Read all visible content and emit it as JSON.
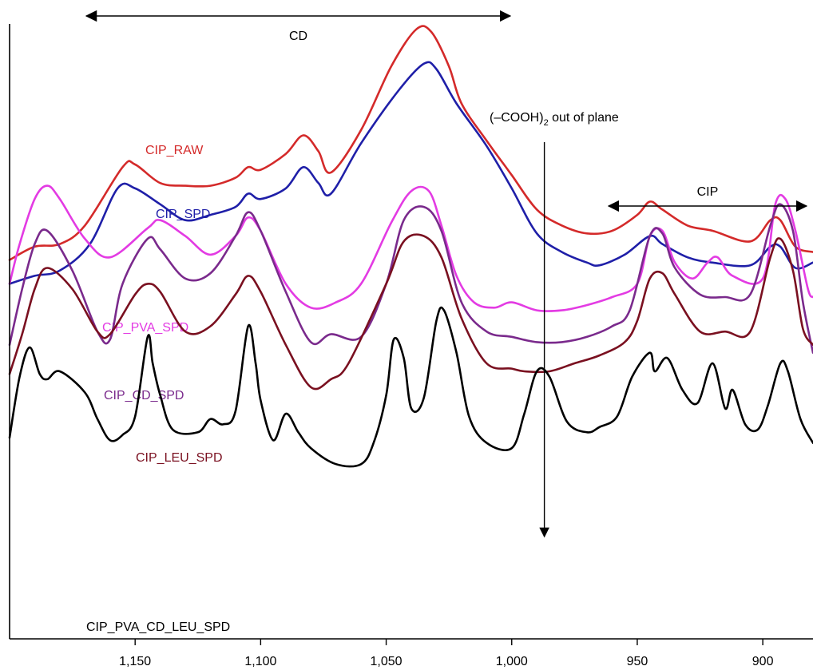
{
  "chart_data": {
    "type": "line",
    "title": "",
    "xlabel": "",
    "ylabel": "",
    "x_reversed": true,
    "xlim": [
      1200,
      880
    ],
    "x_ticks": [
      1150,
      1100,
      1050,
      1000,
      950,
      900
    ],
    "x_tick_labels": [
      "1,150",
      "1,100",
      "1,050",
      "1,000",
      "950",
      "900"
    ],
    "y_axis": "arbitrary offset intensity, no tick labels",
    "series": [
      {
        "name": "CIP_RAW",
        "color": "#d42a2a",
        "points": [
          [
            1200,
            0.39
          ],
          [
            1190,
            0.44
          ],
          [
            1180,
            0.45
          ],
          [
            1170,
            0.52
          ],
          [
            1155,
            0.74
          ],
          [
            1150,
            0.75
          ],
          [
            1140,
            0.68
          ],
          [
            1130,
            0.67
          ],
          [
            1120,
            0.67
          ],
          [
            1110,
            0.7
          ],
          [
            1105,
            0.74
          ],
          [
            1100,
            0.73
          ],
          [
            1090,
            0.79
          ],
          [
            1083,
            0.86
          ],
          [
            1077,
            0.8
          ],
          [
            1072,
            0.72
          ],
          [
            1060,
            0.88
          ],
          [
            1048,
            1.12
          ],
          [
            1038,
            1.26
          ],
          [
            1032,
            1.25
          ],
          [
            1025,
            1.12
          ],
          [
            1020,
            0.98
          ],
          [
            1010,
            0.84
          ],
          [
            1000,
            0.71
          ],
          [
            990,
            0.58
          ],
          [
            980,
            0.52
          ],
          [
            970,
            0.49
          ],
          [
            960,
            0.5
          ],
          [
            950,
            0.56
          ],
          [
            945,
            0.61
          ],
          [
            940,
            0.58
          ],
          [
            930,
            0.52
          ],
          [
            920,
            0.5
          ],
          [
            905,
            0.46
          ],
          [
            897,
            0.54
          ],
          [
            893,
            0.54
          ],
          [
            887,
            0.44
          ],
          [
            880,
            0.42
          ]
        ]
      },
      {
        "name": "CIP_SPD",
        "color": "#1f1fa8",
        "points": [
          [
            1200,
            0.3
          ],
          [
            1190,
            0.33
          ],
          [
            1180,
            0.35
          ],
          [
            1168,
            0.45
          ],
          [
            1157,
            0.66
          ],
          [
            1150,
            0.66
          ],
          [
            1140,
            0.6
          ],
          [
            1130,
            0.54
          ],
          [
            1120,
            0.56
          ],
          [
            1110,
            0.59
          ],
          [
            1105,
            0.64
          ],
          [
            1100,
            0.62
          ],
          [
            1090,
            0.66
          ],
          [
            1083,
            0.74
          ],
          [
            1077,
            0.68
          ],
          [
            1072,
            0.64
          ],
          [
            1060,
            0.83
          ],
          [
            1045,
            1.03
          ],
          [
            1035,
            1.13
          ],
          [
            1030,
            1.11
          ],
          [
            1022,
            0.98
          ],
          [
            1010,
            0.82
          ],
          [
            1000,
            0.66
          ],
          [
            990,
            0.49
          ],
          [
            980,
            0.42
          ],
          [
            970,
            0.38
          ],
          [
            965,
            0.37
          ],
          [
            955,
            0.41
          ],
          [
            945,
            0.48
          ],
          [
            940,
            0.45
          ],
          [
            930,
            0.4
          ],
          [
            920,
            0.38
          ],
          [
            905,
            0.37
          ],
          [
            897,
            0.44
          ],
          [
            893,
            0.44
          ],
          [
            887,
            0.36
          ],
          [
            880,
            0.38
          ]
        ]
      },
      {
        "name": "CIP_PVA_SPD",
        "color": "#e33be3",
        "points": [
          [
            1200,
            0.3
          ],
          [
            1196,
            0.45
          ],
          [
            1190,
            0.62
          ],
          [
            1185,
            0.67
          ],
          [
            1180,
            0.62
          ],
          [
            1170,
            0.47
          ],
          [
            1160,
            0.4
          ],
          [
            1145,
            0.51
          ],
          [
            1140,
            0.54
          ],
          [
            1130,
            0.48
          ],
          [
            1120,
            0.41
          ],
          [
            1110,
            0.48
          ],
          [
            1105,
            0.55
          ],
          [
            1100,
            0.5
          ],
          [
            1090,
            0.3
          ],
          [
            1080,
            0.21
          ],
          [
            1070,
            0.23
          ],
          [
            1060,
            0.3
          ],
          [
            1048,
            0.53
          ],
          [
            1040,
            0.65
          ],
          [
            1033,
            0.65
          ],
          [
            1028,
            0.52
          ],
          [
            1022,
            0.33
          ],
          [
            1015,
            0.23
          ],
          [
            1007,
            0.21
          ],
          [
            1000,
            0.23
          ],
          [
            990,
            0.2
          ],
          [
            980,
            0.2
          ],
          [
            970,
            0.22
          ],
          [
            960,
            0.25
          ],
          [
            950,
            0.3
          ],
          [
            945,
            0.48
          ],
          [
            940,
            0.5
          ],
          [
            935,
            0.38
          ],
          [
            928,
            0.32
          ],
          [
            922,
            0.38
          ],
          [
            918,
            0.4
          ],
          [
            912,
            0.33
          ],
          [
            900,
            0.32
          ],
          [
            895,
            0.6
          ],
          [
            891,
            0.62
          ],
          [
            887,
            0.5
          ],
          [
            882,
            0.28
          ],
          [
            880,
            0.25
          ]
        ]
      },
      {
        "name": "CIP_CD_SPD",
        "color": "#7a2a8c",
        "points": [
          [
            1200,
            0.07
          ],
          [
            1195,
            0.28
          ],
          [
            1190,
            0.45
          ],
          [
            1185,
            0.5
          ],
          [
            1175,
            0.35
          ],
          [
            1165,
            0.12
          ],
          [
            1160,
            0.09
          ],
          [
            1155,
            0.3
          ],
          [
            1145,
            0.47
          ],
          [
            1140,
            0.43
          ],
          [
            1130,
            0.32
          ],
          [
            1120,
            0.34
          ],
          [
            1110,
            0.48
          ],
          [
            1105,
            0.57
          ],
          [
            1100,
            0.5
          ],
          [
            1090,
            0.27
          ],
          [
            1080,
            0.08
          ],
          [
            1072,
            0.11
          ],
          [
            1060,
            0.1
          ],
          [
            1050,
            0.3
          ],
          [
            1043,
            0.54
          ],
          [
            1035,
            0.59
          ],
          [
            1028,
            0.5
          ],
          [
            1020,
            0.23
          ],
          [
            1010,
            0.12
          ],
          [
            1000,
            0.1
          ],
          [
            990,
            0.08
          ],
          [
            980,
            0.08
          ],
          [
            970,
            0.1
          ],
          [
            960,
            0.14
          ],
          [
            953,
            0.2
          ],
          [
            945,
            0.48
          ],
          [
            940,
            0.49
          ],
          [
            935,
            0.36
          ],
          [
            925,
            0.26
          ],
          [
            915,
            0.25
          ],
          [
            905,
            0.26
          ],
          [
            897,
            0.52
          ],
          [
            893,
            0.6
          ],
          [
            888,
            0.5
          ],
          [
            884,
            0.23
          ],
          [
            880,
            0.04
          ]
        ]
      },
      {
        "name": "CIP_LEU_SPD",
        "color": "#7a1020",
        "points": [
          [
            1200,
            -0.04
          ],
          [
            1195,
            0.11
          ],
          [
            1190,
            0.28
          ],
          [
            1185,
            0.36
          ],
          [
            1175,
            0.28
          ],
          [
            1165,
            0.12
          ],
          [
            1160,
            0.11
          ],
          [
            1150,
            0.26
          ],
          [
            1145,
            0.3
          ],
          [
            1140,
            0.27
          ],
          [
            1130,
            0.12
          ],
          [
            1120,
            0.14
          ],
          [
            1110,
            0.26
          ],
          [
            1105,
            0.33
          ],
          [
            1100,
            0.27
          ],
          [
            1090,
            0.07
          ],
          [
            1080,
            -0.09
          ],
          [
            1072,
            -0.06
          ],
          [
            1065,
            0.0
          ],
          [
            1050,
            0.3
          ],
          [
            1043,
            0.46
          ],
          [
            1035,
            0.48
          ],
          [
            1028,
            0.4
          ],
          [
            1020,
            0.17
          ],
          [
            1010,
            0.0
          ],
          [
            1000,
            -0.02
          ],
          [
            995,
            -0.03
          ],
          [
            985,
            -0.03
          ],
          [
            975,
            0.0
          ],
          [
            965,
            0.03
          ],
          [
            955,
            0.08
          ],
          [
            950,
            0.16
          ],
          [
            945,
            0.32
          ],
          [
            940,
            0.34
          ],
          [
            935,
            0.26
          ],
          [
            925,
            0.12
          ],
          [
            915,
            0.12
          ],
          [
            905,
            0.12
          ],
          [
            897,
            0.4
          ],
          [
            893,
            0.47
          ],
          [
            888,
            0.35
          ],
          [
            884,
            0.13
          ],
          [
            880,
            0.07
          ]
        ]
      },
      {
        "name": "CIP_PVA_CD_LEU_SPD",
        "color": "#000000",
        "points": [
          [
            1200,
            -0.28
          ],
          [
            1196,
            -0.05
          ],
          [
            1192,
            0.06
          ],
          [
            1188,
            -0.04
          ],
          [
            1185,
            -0.06
          ],
          [
            1180,
            -0.03
          ],
          [
            1170,
            -0.11
          ],
          [
            1165,
            -0.21
          ],
          [
            1160,
            -0.29
          ],
          [
            1155,
            -0.27
          ],
          [
            1150,
            -0.2
          ],
          [
            1145,
            0.1
          ],
          [
            1143,
            0.0
          ],
          [
            1140,
            -0.12
          ],
          [
            1135,
            -0.25
          ],
          [
            1125,
            -0.26
          ],
          [
            1120,
            -0.21
          ],
          [
            1115,
            -0.23
          ],
          [
            1110,
            -0.18
          ],
          [
            1105,
            0.14
          ],
          [
            1102,
            0.0
          ],
          [
            1100,
            -0.14
          ],
          [
            1095,
            -0.29
          ],
          [
            1090,
            -0.19
          ],
          [
            1085,
            -0.26
          ],
          [
            1080,
            -0.32
          ],
          [
            1070,
            -0.38
          ],
          [
            1060,
            -0.38
          ],
          [
            1055,
            -0.3
          ],
          [
            1050,
            -0.12
          ],
          [
            1047,
            0.09
          ],
          [
            1043,
            0.02
          ],
          [
            1040,
            -0.17
          ],
          [
            1035,
            -0.13
          ],
          [
            1030,
            0.16
          ],
          [
            1027,
            0.2
          ],
          [
            1022,
            0.04
          ],
          [
            1017,
            -0.2
          ],
          [
            1010,
            -0.3
          ],
          [
            1000,
            -0.32
          ],
          [
            995,
            -0.19
          ],
          [
            990,
            -0.03
          ],
          [
            985,
            -0.05
          ],
          [
            978,
            -0.22
          ],
          [
            970,
            -0.26
          ],
          [
            965,
            -0.24
          ],
          [
            958,
            -0.2
          ],
          [
            952,
            -0.05
          ],
          [
            945,
            0.04
          ],
          [
            943,
            -0.03
          ],
          [
            938,
            0.02
          ],
          [
            932,
            -0.1
          ],
          [
            926,
            -0.15
          ],
          [
            920,
            0.0
          ],
          [
            915,
            -0.17
          ],
          [
            912,
            -0.1
          ],
          [
            907,
            -0.23
          ],
          [
            902,
            -0.25
          ],
          [
            898,
            -0.16
          ],
          [
            893,
            0.0
          ],
          [
            890,
            -0.03
          ],
          [
            885,
            -0.21
          ],
          [
            880,
            -0.3
          ]
        ]
      }
    ],
    "annotations": [
      {
        "text": "CD",
        "from": 1170,
        "to": 1000,
        "type": "double-arrow"
      },
      {
        "text": "CIP",
        "from": 962,
        "to": 882,
        "type": "double-arrow"
      },
      {
        "text": "(–COOH)",
        "subscript": "2",
        "suffix": " out of plane",
        "x": 987,
        "type": "down-arrow"
      }
    ]
  }
}
